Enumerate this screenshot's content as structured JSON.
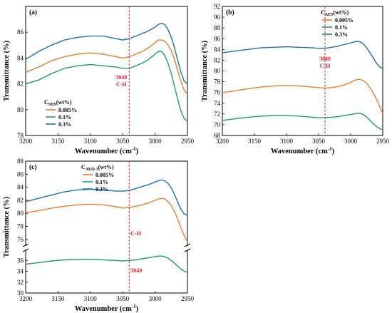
{
  "chart_data": [
    {
      "type": "line",
      "panel_label": "(a)",
      "xlabel": "Wavenumber (cm",
      "xlabel_sup": "-1",
      "xlabel_end": ")",
      "ylabel": "Transmittance (%)",
      "xlim": [
        3200,
        2950
      ],
      "ylim": [
        78,
        88
      ],
      "x_ticks": [
        3200,
        3150,
        3100,
        3050,
        3000,
        2950
      ],
      "y_ticks": [
        78,
        80,
        82,
        84,
        86
      ],
      "legend_title_main": "C",
      "legend_title_sub": "SDS",
      "legend_title_tail": "(wt%)",
      "legend_position": "lower-left",
      "vline": {
        "x": 3040,
        "labels": [
          "3040",
          "C-H"
        ]
      },
      "colors": [
        "#e87d2d",
        "#1a9e73",
        "#1f6fb0"
      ],
      "series": [
        {
          "name": "0.005%",
          "x": [
            3200,
            3180,
            3160,
            3140,
            3120,
            3100,
            3080,
            3060,
            3050,
            3040,
            3030,
            3020,
            3010,
            3000,
            2995,
            2990,
            2985,
            2980,
            2975,
            2970,
            2965,
            2960,
            2955,
            2950
          ],
          "y": [
            82.9,
            83.3,
            83.8,
            84.1,
            84.3,
            84.4,
            84.3,
            84.1,
            84.0,
            84.1,
            84.3,
            84.5,
            84.8,
            85.2,
            85.4,
            85.4,
            85.3,
            85.0,
            84.6,
            83.9,
            83.0,
            82.2,
            81.5,
            81.2
          ]
        },
        {
          "name": "0.1%",
          "x": [
            3200,
            3180,
            3160,
            3140,
            3120,
            3100,
            3080,
            3060,
            3050,
            3040,
            3030,
            3020,
            3010,
            3000,
            2995,
            2990,
            2985,
            2980,
            2975,
            2970,
            2965,
            2960,
            2955,
            2950
          ],
          "y": [
            82.0,
            82.3,
            82.8,
            83.2,
            83.4,
            83.5,
            83.4,
            83.3,
            83.2,
            83.2,
            83.4,
            83.6,
            83.9,
            84.3,
            84.5,
            84.5,
            84.2,
            83.6,
            82.8,
            81.8,
            80.8,
            79.9,
            79.3,
            79.1
          ]
        },
        {
          "name": "0.3%",
          "x": [
            3200,
            3180,
            3160,
            3140,
            3120,
            3100,
            3080,
            3060,
            3050,
            3040,
            3030,
            3020,
            3010,
            3000,
            2995,
            2990,
            2985,
            2980,
            2975,
            2970,
            2965,
            2960,
            2955,
            2950
          ],
          "y": [
            83.9,
            84.5,
            85.0,
            85.4,
            85.6,
            85.7,
            85.7,
            85.5,
            85.4,
            85.5,
            85.7,
            85.9,
            86.1,
            86.4,
            86.6,
            86.7,
            86.6,
            86.2,
            85.6,
            84.8,
            83.8,
            82.9,
            82.2,
            82.0
          ]
        }
      ]
    },
    {
      "type": "line",
      "panel_label": "(b)",
      "xlabel": "Wavenumber (cm",
      "xlabel_sup": "-1",
      "xlabel_end": ")",
      "ylabel": "Transmittance (%)",
      "xlim": [
        3200,
        2950
      ],
      "ylim": [
        68,
        92
      ],
      "x_ticks": [
        3200,
        3150,
        3100,
        3050,
        3000,
        2950
      ],
      "y_ticks": [
        68,
        70,
        72,
        74,
        76,
        78,
        80,
        82,
        84,
        86,
        88,
        90,
        92
      ],
      "legend_title_main": "C",
      "legend_title_sub": "AES",
      "legend_title_tail": "(wt%)",
      "legend_position": "top-right",
      "vline": {
        "x": 3040,
        "labels": [
          "3040",
          "C-H"
        ]
      },
      "colors": [
        "#e87d2d",
        "#1a9e73",
        "#1f6fb0"
      ],
      "series": [
        {
          "name": "0.005%",
          "x": [
            3200,
            3180,
            3160,
            3140,
            3120,
            3100,
            3080,
            3060,
            3050,
            3040,
            3030,
            3020,
            3010,
            3000,
            2995,
            2990,
            2985,
            2980,
            2975,
            2970,
            2965,
            2960,
            2955,
            2950
          ],
          "y": [
            76.0,
            76.3,
            76.7,
            77.0,
            77.2,
            77.3,
            77.2,
            77.0,
            76.9,
            76.8,
            76.9,
            77.1,
            77.4,
            77.9,
            78.2,
            78.4,
            78.4,
            78.2,
            77.7,
            76.9,
            75.9,
            74.8,
            73.5,
            72.1
          ]
        },
        {
          "name": "0.1%",
          "x": [
            3200,
            3180,
            3160,
            3140,
            3120,
            3100,
            3080,
            3060,
            3050,
            3040,
            3030,
            3020,
            3010,
            3000,
            2995,
            2990,
            2985,
            2980,
            2975,
            2970,
            2965,
            2960,
            2955,
            2950
          ],
          "y": [
            70.8,
            71.1,
            71.4,
            71.6,
            71.7,
            71.7,
            71.6,
            71.4,
            71.3,
            71.3,
            71.4,
            71.5,
            71.7,
            71.9,
            72.0,
            72.1,
            72.1,
            71.9,
            71.4,
            70.8,
            70.2,
            69.7,
            69.3,
            69.0
          ]
        },
        {
          "name": "0.3%",
          "x": [
            3200,
            3180,
            3160,
            3140,
            3120,
            3100,
            3080,
            3060,
            3050,
            3040,
            3030,
            3020,
            3010,
            3000,
            2995,
            2990,
            2985,
            2980,
            2975,
            2970,
            2965,
            2960,
            2955,
            2950
          ],
          "y": [
            83.4,
            83.7,
            84.0,
            84.3,
            84.4,
            84.5,
            84.4,
            84.3,
            84.2,
            84.2,
            84.4,
            84.6,
            84.9,
            85.2,
            85.4,
            85.5,
            85.4,
            85.0,
            84.3,
            83.4,
            82.5,
            81.5,
            80.8,
            80.4
          ]
        }
      ]
    },
    {
      "type": "line",
      "panel_label": "(c)",
      "xlabel": "Wavenumber (cm",
      "xlabel_sup": "-1",
      "xlabel_end": ")",
      "ylabel": "Transmittance (%)",
      "xlim": [
        3200,
        2950
      ],
      "ylim_upper": [
        75,
        88
      ],
      "ylim_lower": [
        30,
        38
      ],
      "y_ticks_upper": [
        76,
        78,
        80,
        82,
        84,
        86,
        88
      ],
      "y_ticks_lower": [
        30,
        32,
        34,
        36
      ],
      "x_ticks": [
        3200,
        3150,
        3100,
        3050,
        3000,
        2950
      ],
      "broken_axis": true,
      "legend_title_main": "C",
      "legend_title_sub": "AEO-3",
      "legend_title_tail": "(wt%)",
      "legend_position": "top-left",
      "vline": {
        "x": 3040,
        "labels": [
          "C-H",
          "3040"
        ]
      },
      "colors": [
        "#e87d2d",
        "#1a9e73",
        "#1f6fb0"
      ],
      "series": [
        {
          "name": "0.005%",
          "x": [
            3200,
            3180,
            3160,
            3140,
            3120,
            3100,
            3080,
            3060,
            3050,
            3040,
            3030,
            3020,
            3010,
            3000,
            2995,
            2990,
            2985,
            2980,
            2975,
            2970,
            2965,
            2960,
            2955,
            2950
          ],
          "y": [
            80.1,
            80.4,
            80.8,
            81.1,
            81.3,
            81.4,
            81.3,
            81.0,
            80.8,
            80.9,
            81.1,
            81.3,
            81.6,
            82.0,
            82.2,
            82.3,
            82.2,
            81.8,
            81.2,
            80.3,
            79.1,
            77.8,
            76.6,
            75.6
          ]
        },
        {
          "name": "0.1%",
          "x": [
            3200,
            3180,
            3160,
            3140,
            3120,
            3100,
            3080,
            3060,
            3050,
            3040,
            3030,
            3020,
            3010,
            3000,
            2995,
            2990,
            2985,
            2980,
            2975,
            2970,
            2965,
            2960,
            2955,
            2950
          ],
          "y": [
            35.3,
            35.6,
            35.9,
            36.1,
            36.2,
            36.2,
            36.1,
            36.0,
            35.9,
            36.0,
            36.1,
            36.3,
            36.5,
            36.7,
            36.8,
            36.8,
            36.7,
            36.4,
            36.0,
            35.5,
            34.9,
            34.4,
            34.0,
            33.8
          ]
        },
        {
          "name": "0.3%",
          "x": [
            3200,
            3180,
            3160,
            3140,
            3120,
            3100,
            3080,
            3060,
            3050,
            3040,
            3030,
            3020,
            3010,
            3000,
            2995,
            2990,
            2985,
            2980,
            2975,
            2970,
            2965,
            2960,
            2955,
            2950
          ],
          "y": [
            81.8,
            82.3,
            82.8,
            83.3,
            83.6,
            83.7,
            83.6,
            83.4,
            83.4,
            83.5,
            83.8,
            84.1,
            84.4,
            84.8,
            85.0,
            85.1,
            85.0,
            84.6,
            83.9,
            82.9,
            81.7,
            80.6,
            79.9,
            79.7
          ]
        }
      ]
    }
  ]
}
